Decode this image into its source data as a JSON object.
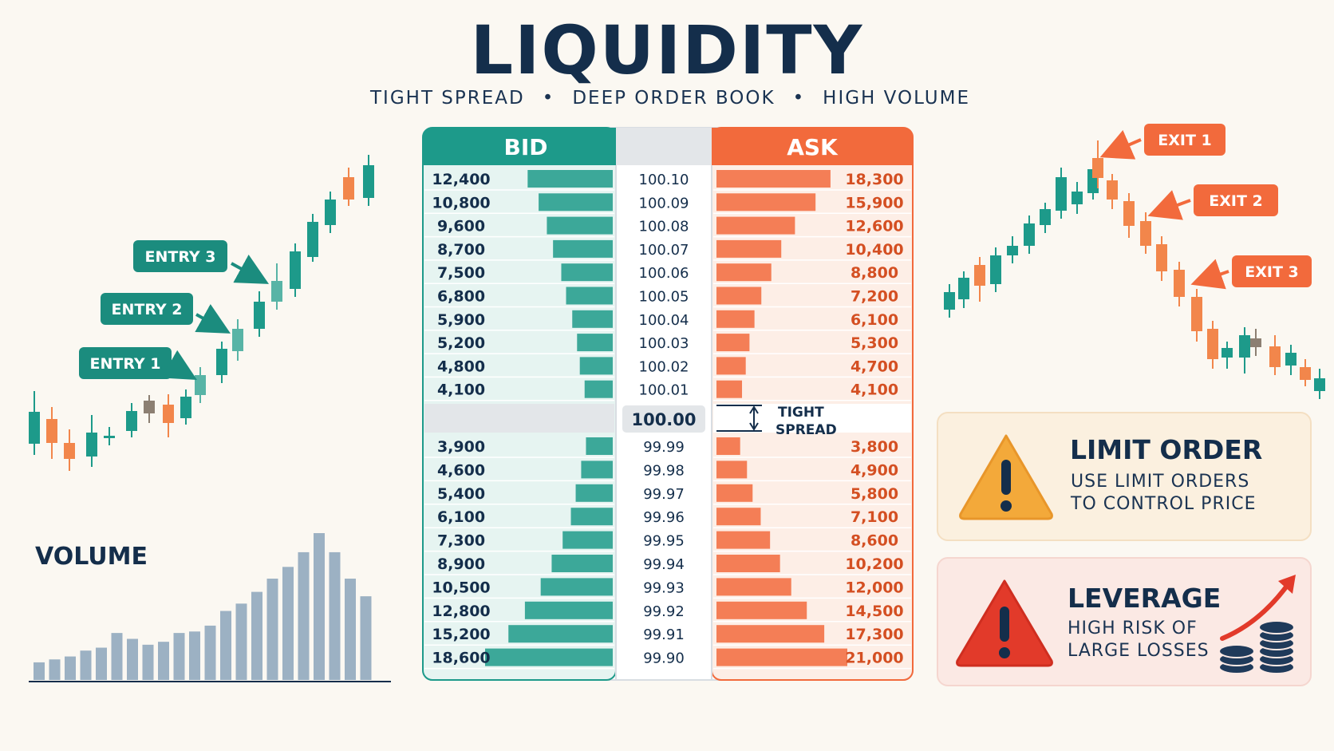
{
  "title": "LIQUIDITY",
  "subtitle": [
    "TIGHT SPREAD",
    "DEEP ORDER BOOK",
    "HIGH VOLUME"
  ],
  "colors": {
    "bid": "#1d9a8a",
    "ask": "#f26a3c",
    "navy": "#142e4b",
    "volume": "#9cb1c3"
  },
  "order_book": {
    "bid_header": "BID",
    "ask_header": "ASK",
    "mid_price": "100.00",
    "spread_label": [
      "TIGHT",
      "SPREAD"
    ],
    "asks_upper": [
      {
        "bid": "12,400",
        "price": "100.10",
        "ask": "18,300"
      },
      {
        "bid": "10,800",
        "price": "100.09",
        "ask": "15,900"
      },
      {
        "bid": "9,600",
        "price": "100.08",
        "ask": "12,600"
      },
      {
        "bid": "8,700",
        "price": "100.07",
        "ask": "10,400"
      },
      {
        "bid": "7,500",
        "price": "100.06",
        "ask": "8,800"
      },
      {
        "bid": "6,800",
        "price": "100.05",
        "ask": "7,200"
      },
      {
        "bid": "5,900",
        "price": "100.04",
        "ask": "6,100"
      },
      {
        "bid": "5,200",
        "price": "100.03",
        "ask": "5,300"
      },
      {
        "bid": "4,800",
        "price": "100.02",
        "ask": "4,700"
      },
      {
        "bid": "4,100",
        "price": "100.01",
        "ask": "4,100"
      }
    ],
    "bids_lower": [
      {
        "bid": "3,900",
        "price": "99.99",
        "ask": "3,800"
      },
      {
        "bid": "4,600",
        "price": "99.98",
        "ask": "4,900"
      },
      {
        "bid": "5,400",
        "price": "99.97",
        "ask": "5,800"
      },
      {
        "bid": "6,100",
        "price": "99.96",
        "ask": "7,100"
      },
      {
        "bid": "7,300",
        "price": "99.95",
        "ask": "8,600"
      },
      {
        "bid": "8,900",
        "price": "99.94",
        "ask": "10,200"
      },
      {
        "bid": "10,500",
        "price": "99.93",
        "ask": "12,000"
      },
      {
        "bid": "12,800",
        "price": "99.92",
        "ask": "14,500"
      },
      {
        "bid": "15,200",
        "price": "99.91",
        "ask": "17,300"
      },
      {
        "bid": "18,600",
        "price": "99.90",
        "ask": "21,000"
      }
    ]
  },
  "entries": [
    "ENTRY 3",
    "ENTRY 2",
    "ENTRY 1"
  ],
  "exits": [
    "EXIT 1",
    "EXIT 2",
    "EXIT 3"
  ],
  "volume": {
    "label": "VOLUME",
    "values": [
      12,
      14,
      16,
      20,
      22,
      32,
      28,
      24,
      26,
      32,
      33,
      37,
      47,
      52,
      60,
      69,
      77,
      87,
      100,
      87,
      69,
      57
    ]
  },
  "limit_order": {
    "title": "LIMIT ORDER",
    "lines": [
      "USE LIMIT ORDERS",
      "TO CONTROL PRICE"
    ],
    "icon": "warning-triangle-icon"
  },
  "leverage": {
    "title": "LEVERAGE",
    "lines": [
      "HIGH RISK OF",
      "LARGE LOSSES"
    ],
    "icon": "warning-triangle-icon"
  }
}
